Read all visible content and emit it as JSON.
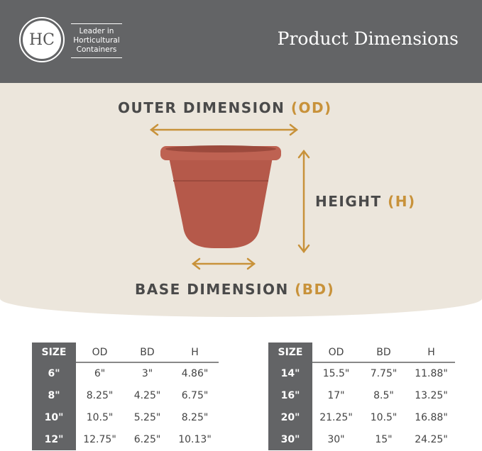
{
  "header": {
    "logo_text": "HC",
    "tagline": [
      "Leader in",
      "Horticultural",
      "Containers"
    ],
    "title": "Product Dimensions"
  },
  "diagram": {
    "outer": {
      "text": "OUTER DIMENSION",
      "abbr": "(OD)"
    },
    "height": {
      "text": "HEIGHT",
      "abbr": "(H)"
    },
    "base": {
      "text": "BASE DIMENSION",
      "abbr": "(BD)"
    }
  },
  "colors": {
    "header": "#636466",
    "accent": "#c8923a",
    "pot": "#b5594a"
  },
  "table_headers": [
    "SIZE",
    "OD",
    "BD",
    "H"
  ],
  "tables": [
    {
      "rows": [
        [
          "6\"",
          "6\"",
          "3\"",
          "4.86\""
        ],
        [
          "8\"",
          "8.25\"",
          "4.25\"",
          "6.75\""
        ],
        [
          "10\"",
          "10.5\"",
          "5.25\"",
          "8.25\""
        ],
        [
          "12\"",
          "12.75\"",
          "6.25\"",
          "10.13\""
        ]
      ]
    },
    {
      "rows": [
        [
          "14\"",
          "15.5\"",
          "7.75\"",
          "11.88\""
        ],
        [
          "16\"",
          "17\"",
          "8.5\"",
          "13.25\""
        ],
        [
          "20\"",
          "21.25\"",
          "10.5\"",
          "16.88\""
        ],
        [
          "30\"",
          "30\"",
          "15\"",
          "24.25\""
        ]
      ]
    }
  ]
}
